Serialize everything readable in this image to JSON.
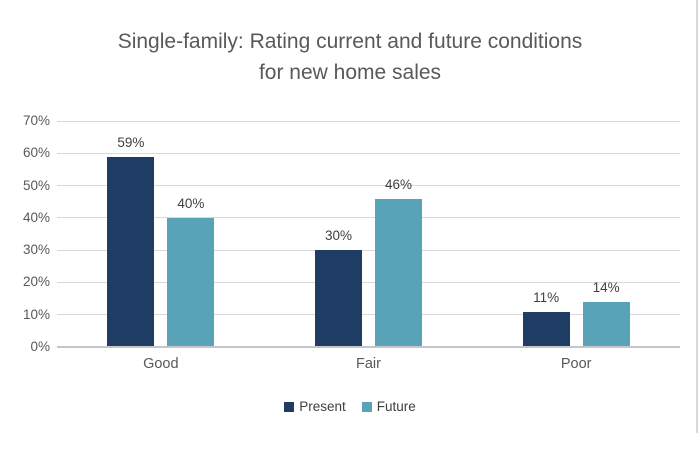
{
  "title": "Single-family: Rating current and future conditions for new home sales",
  "background": "#ffffff",
  "text_colors": {
    "title": "#595959",
    "axis": "#595959",
    "data_label": "#404040",
    "legend": "#404040"
  },
  "line_colors": {
    "gridline": "#d9d9d9",
    "axis_line": "#c6c6c6",
    "frame_edge": "#d9d9d9"
  },
  "chart_data": {
    "type": "bar",
    "title": "Single-family: Rating current and future conditions for new home sales",
    "categories": [
      "Good",
      "Fair",
      "Poor"
    ],
    "series": [
      {
        "name": "Present",
        "color": "#1e3c64",
        "values": [
          59,
          30,
          11
        ]
      },
      {
        "name": "Future",
        "color": "#58a3b8",
        "values": [
          40,
          46,
          14
        ]
      }
    ],
    "data_labels": [
      [
        "59%",
        "30%",
        "11%"
      ],
      [
        "40%",
        "46%",
        "14%"
      ]
    ],
    "value_suffix": "%",
    "ylim": [
      0,
      70
    ],
    "y_tick_values": [
      0,
      10,
      20,
      30,
      40,
      50,
      60,
      70
    ],
    "y_tick_labels": [
      "0%",
      "10%",
      "20%",
      "30%",
      "40%",
      "50%",
      "60%",
      "70%"
    ],
    "grid": true,
    "legend_position": "bottom"
  }
}
